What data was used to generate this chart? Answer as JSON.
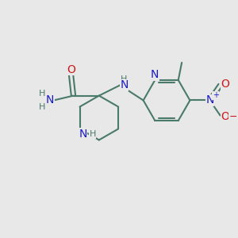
{
  "bg_color": "#e8e8e8",
  "bond_color": "#4a7a6a",
  "bond_width": 1.5,
  "atom_colors": {
    "N": "#1a1acc",
    "O": "#cc1a1a",
    "C": "#4a7a6a",
    "H": "#4a7a6a"
  },
  "font_size_atom": 10,
  "font_size_small": 8,
  "font_size_methyl": 9
}
